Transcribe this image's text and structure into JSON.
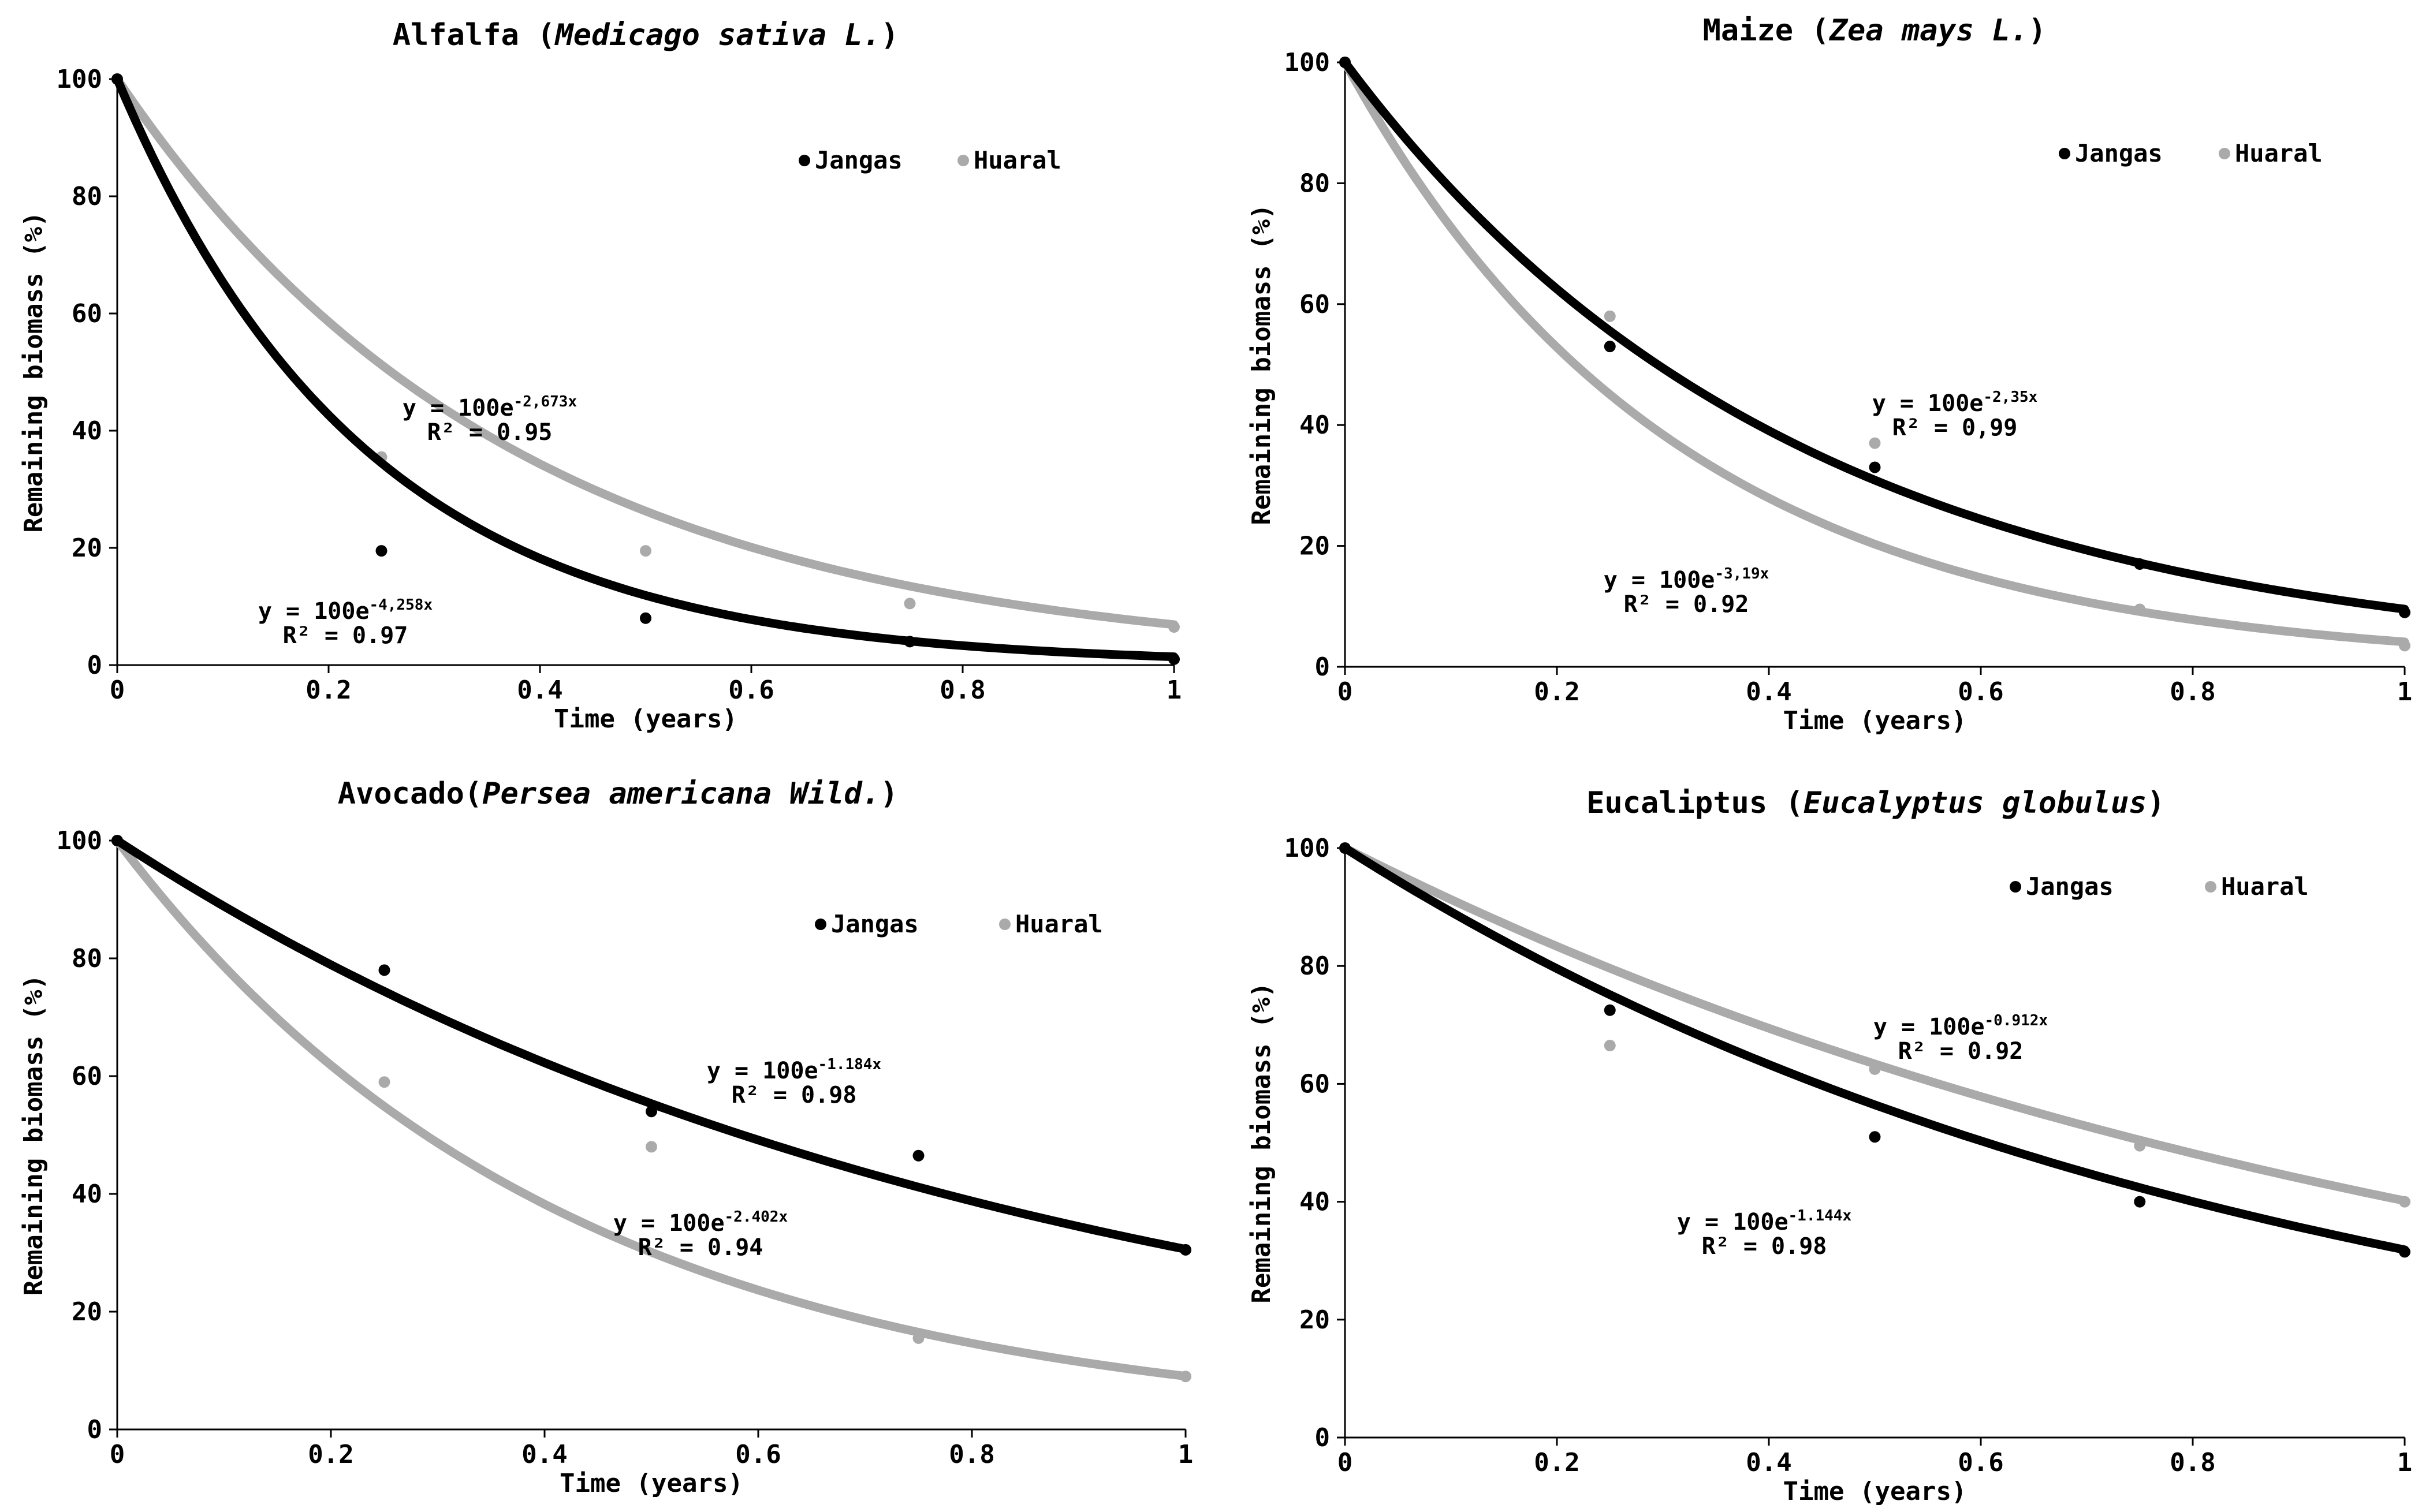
{
  "colors": {
    "Jangas": "#000000",
    "Huaral": "#aaaaaa",
    "axis": "#000000"
  },
  "chart_data": [
    {
      "type": "scatter",
      "title": "Alfalfa (",
      "title_italic": "Medicago sativa L.",
      "title_end": ")",
      "xlabel": "Time (years)",
      "ylabel": "Remaining biomass (%)",
      "xlim": [
        0,
        1
      ],
      "ylim": [
        0,
        100
      ],
      "xticks": [
        "0",
        "0.2",
        "0.4",
        "0.6",
        "0.8",
        "1"
      ],
      "yticks": [
        "0",
        "20",
        "40",
        "60",
        "80",
        "100"
      ],
      "legend": [
        "Jangas",
        "Huaral"
      ],
      "series": [
        {
          "name": "Jangas",
          "x": [
            0,
            0.25,
            0.5,
            0.75,
            1
          ],
          "y": [
            100,
            19.5,
            8,
            4,
            1
          ],
          "k": 4.258,
          "eq_main": "y = 100e",
          "eq_sup": "-4,258x",
          "r2": "R² = 0.97"
        },
        {
          "name": "Huaral",
          "x": [
            0,
            0.25,
            0.5,
            0.75,
            1
          ],
          "y": [
            100,
            35.5,
            19.5,
            10.5,
            6.5
          ],
          "k": 2.673,
          "eq_main": "y = 100e",
          "eq_sup": "-2,673x",
          "r2": "R² = 0.95"
        }
      ]
    },
    {
      "type": "scatter",
      "title": "Maize (",
      "title_italic": "Zea mays L.",
      "title_end": ")",
      "xlabel": "Time (years)",
      "ylabel": "Remaining biomass (%)",
      "xlim": [
        0,
        1
      ],
      "ylim": [
        0,
        100
      ],
      "xticks": [
        "0",
        "0.2",
        "0.4",
        "0.6",
        "0.8",
        "1"
      ],
      "yticks": [
        "0",
        "20",
        "40",
        "60",
        "80",
        "100"
      ],
      "legend": [
        "Jangas",
        "Huaral"
      ],
      "series": [
        {
          "name": "Jangas",
          "x": [
            0,
            0.25,
            0.5,
            0.75,
            1
          ],
          "y": [
            100,
            53,
            33,
            17,
            9
          ],
          "k": 2.35,
          "eq_main": "y = 100e",
          "eq_sup": "-2,35x",
          "r2": "R² = 0,99"
        },
        {
          "name": "Huaral",
          "x": [
            0,
            0.25,
            0.5,
            0.75,
            1
          ],
          "y": [
            100,
            58,
            37,
            9.5,
            3.5
          ],
          "k": 3.19,
          "eq_main": "y = 100e",
          "eq_sup": "-3,19x",
          "r2": "R² = 0.92"
        }
      ]
    },
    {
      "type": "scatter",
      "title": "Avocado(",
      "title_italic": "Persea americana Wild.",
      "title_end": ")",
      "xlabel": "Time (years)",
      "ylabel": "Remaining biomass (%)",
      "xlim": [
        0,
        1
      ],
      "ylim": [
        0,
        100
      ],
      "xticks": [
        "0",
        "0.2",
        "0.4",
        "0.6",
        "0.8",
        "1"
      ],
      "yticks": [
        "0",
        "20",
        "40",
        "60",
        "80",
        "100"
      ],
      "legend": [
        "Jangas",
        "Huaral"
      ],
      "series": [
        {
          "name": "Jangas",
          "x": [
            0,
            0.25,
            0.5,
            0.75,
            1
          ],
          "y": [
            100,
            78,
            54,
            46.5,
            30.5
          ],
          "k": 1.184,
          "eq_main": "y = 100e",
          "eq_sup": "-1.184x",
          "r2": "R² = 0.98"
        },
        {
          "name": "Huaral",
          "x": [
            0,
            0.25,
            0.5,
            0.75,
            1
          ],
          "y": [
            100,
            59,
            48,
            15.5,
            9
          ],
          "k": 2.402,
          "eq_main": "y = 100e",
          "eq_sup": "-2.402x",
          "r2": "R² = 0.94"
        }
      ]
    },
    {
      "type": "scatter",
      "title": "Eucaliptus (",
      "title_italic": "Eucalyptus globulus",
      "title_end": ")",
      "xlabel": "Time (years)",
      "ylabel": "Remaining biomass (%)",
      "xlim": [
        0,
        1
      ],
      "ylim": [
        0,
        100
      ],
      "xticks": [
        "0",
        "0.2",
        "0.4",
        "0.6",
        "0.8",
        "1"
      ],
      "yticks": [
        "0",
        "20",
        "40",
        "60",
        "80",
        "100"
      ],
      "legend": [
        "Jangas",
        "Huaral"
      ],
      "series": [
        {
          "name": "Jangas",
          "x": [
            0,
            0.25,
            0.5,
            0.75,
            1
          ],
          "y": [
            100,
            72.5,
            51,
            40,
            31.5
          ],
          "k": 1.144,
          "eq_main": "y = 100e",
          "eq_sup": "-1.144x",
          "r2": "R² = 0.98"
        },
        {
          "name": "Huaral",
          "x": [
            0,
            0.25,
            0.5,
            0.75,
            1
          ],
          "y": [
            100,
            66.5,
            62.5,
            49.5,
            40
          ],
          "k": 0.912,
          "eq_main": "y = 100e",
          "eq_sup": "-0.912x",
          "r2": "R² = 0.92"
        }
      ]
    }
  ]
}
